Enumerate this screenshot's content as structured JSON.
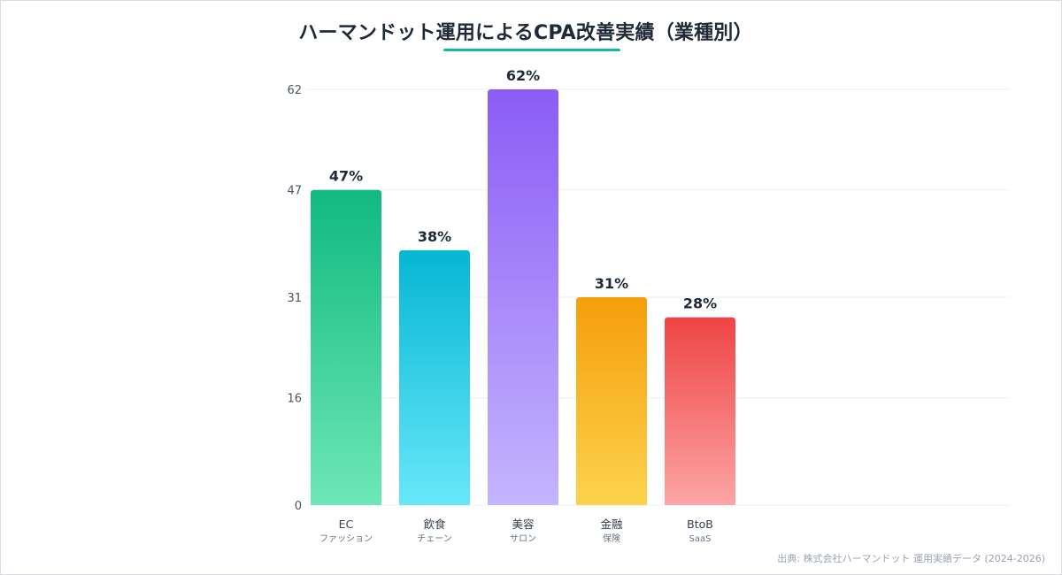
{
  "chart_data": {
    "type": "bar",
    "title": "ハーマンドット運用によるCPA改善実績（業種別）",
    "categories": [
      "EC",
      "飲食",
      "美容",
      "金融",
      "BtoB"
    ],
    "category_sublabels": [
      "ファッション",
      "チェーン",
      "サロン",
      "保険",
      "SaaS"
    ],
    "values": [
      47,
      38,
      62,
      31,
      28
    ],
    "value_labels": [
      "47%",
      "38%",
      "62%",
      "31%",
      "28%"
    ],
    "yticks": [
      "0",
      "16",
      "31",
      "47",
      "62"
    ],
    "ylim": [
      0,
      62
    ],
    "xlabel": "",
    "ylabel": "",
    "grid": true,
    "legend": "none",
    "colors": [
      {
        "top": "#10b981",
        "bottom": "#6ee7b7"
      },
      {
        "top": "#06b6d4",
        "bottom": "#67e8f9"
      },
      {
        "top": "#8b5cf6",
        "bottom": "#c4b5fd"
      },
      {
        "top": "#f59e0b",
        "bottom": "#fcd34d"
      },
      {
        "top": "#ef4444",
        "bottom": "#fca5a5"
      }
    ],
    "accent_color": "#14b8a6"
  },
  "footer": {
    "source": "出典: 株式会社ハーマンドット 運用実績データ (2024-2026)"
  }
}
